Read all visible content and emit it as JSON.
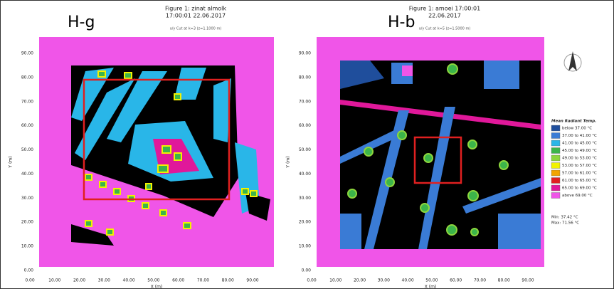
{
  "panels": [
    {
      "label": "H-g",
      "title": [
        "Figure 1: zinat almolk",
        "17:00:01 22.06.2017"
      ],
      "subtitle": "x/y Cut at k=3 (z=1.1000 m)",
      "x_axis_label": "X (m)",
      "y_axis_label": "Y (m)",
      "xticks": [
        "0.00",
        "10.00",
        "20.00",
        "30.00",
        "40.00",
        "50.00",
        "60.00",
        "70.00",
        "80.00",
        "90.00"
      ],
      "yticks": [
        "90.00",
        "80.00",
        "70.00",
        "60.00",
        "50.00",
        "40.00",
        "30.00",
        "20.00",
        "10.00",
        "0.00"
      ]
    },
    {
      "label": "H-b",
      "title": [
        "Figure 1: amoei 17:00:01",
        "22.06.2017"
      ],
      "subtitle": "x/y Cut at k=5 (z=1.5000 m)",
      "x_axis_label": "X (m)",
      "y_axis_label": "Y (m)",
      "xticks": [
        "0.00",
        "10.00",
        "20.00",
        "30.00",
        "40.00",
        "50.00",
        "60.00",
        "70.00",
        "80.00",
        "90.00"
      ],
      "yticks": [
        "90.00",
        "80.00",
        "70.00",
        "60.00",
        "50.00",
        "40.00",
        "30.00",
        "20.00",
        "10.00",
        "0.00"
      ]
    }
  ],
  "legend": {
    "title": "Mean Radiant Temp.",
    "items": [
      {
        "label": "below 37.00 °C",
        "color": "#1f4e9c"
      },
      {
        "label": "37.00 to 41.00 °C",
        "color": "#3a7bd5"
      },
      {
        "label": "41.00 to 45.00 °C",
        "color": "#29b6e8"
      },
      {
        "label": "45.00 to 49.00 °C",
        "color": "#3cb54a"
      },
      {
        "label": "49.00 to 53.00 °C",
        "color": "#8dd63d"
      },
      {
        "label": "53.00 to 57.00 °C",
        "color": "#f2f200"
      },
      {
        "label": "57.00 to 61.00 °C",
        "color": "#f2a400"
      },
      {
        "label": "61.00 to 65.00 °C",
        "color": "#e02020"
      },
      {
        "label": "65.00 to 69.00 °C",
        "color": "#e0189a"
      },
      {
        "label": "above 69.00 °C",
        "color": "#f055e8"
      }
    ],
    "min": "Min: 37.42 °C",
    "max": "Max: 71.56 °C"
  }
}
